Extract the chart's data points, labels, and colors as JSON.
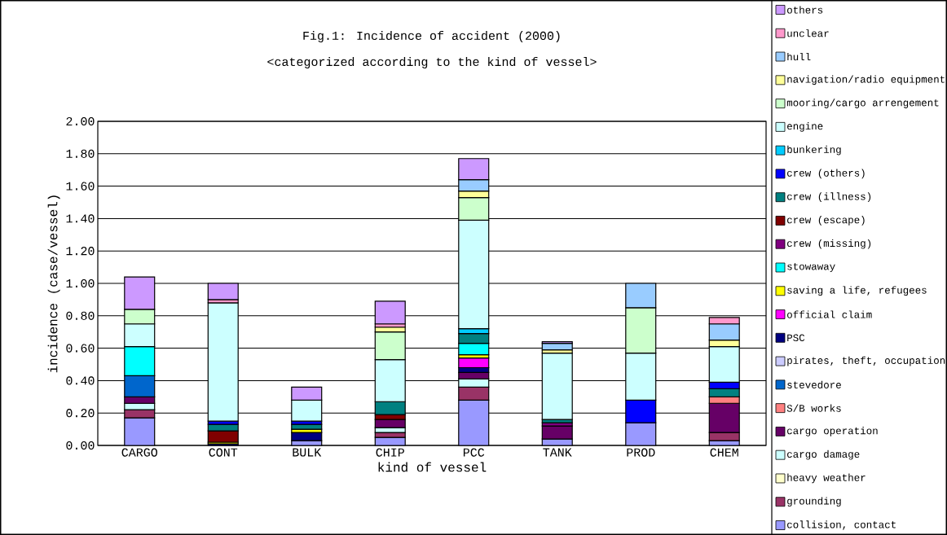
{
  "chart_data": {
    "type": "bar",
    "stacked": true,
    "title": "Fig.1: Incidence of accident  (2000)",
    "subtitle": "<categorized according to the kind of vessel>",
    "xlabel": "kind of vessel",
    "ylabel": "incidence (case/vessel)",
    "categories": [
      "CARGO",
      "CONT",
      "BULK",
      "CHIP",
      "PCC",
      "TANK",
      "PROD",
      "CHEM"
    ],
    "ylim": [
      0,
      2
    ],
    "yticks": [
      {
        "value": 0,
        "label": "0.00"
      },
      {
        "value": 0.2,
        "label": "0.20"
      },
      {
        "value": 0.4,
        "label": "0.40"
      },
      {
        "value": 0.6,
        "label": "0.60"
      },
      {
        "value": 0.8,
        "label": "0.80"
      },
      {
        "value": 1.0,
        "label": "1.00"
      },
      {
        "value": 1.2,
        "label": "1.20"
      },
      {
        "value": 1.4,
        "label": "1.40"
      },
      {
        "value": 1.6,
        "label": "1.60"
      },
      {
        "value": 1.8,
        "label": "1.80"
      },
      {
        "value": 2.0,
        "label": "2.00"
      }
    ],
    "grid": "y",
    "legend": "right",
    "series": [
      {
        "name": "collision, contact",
        "color": "#9999ff",
        "values": [
          0.17,
          null,
          0.03,
          0.05,
          0.28,
          0.04,
          0.14,
          0.03
        ]
      },
      {
        "name": "grounding",
        "color": "#993366",
        "values": [
          0.05,
          null,
          null,
          0.03,
          0.08,
          null,
          null,
          0.05
        ]
      },
      {
        "name": "heavy weather",
        "color": "#ffffcc",
        "values": [
          null,
          null,
          null,
          null,
          null,
          null,
          null,
          null
        ]
      },
      {
        "name": "cargo damage",
        "color": "#ccffff",
        "values": [
          0.04,
          null,
          null,
          0.03,
          0.05,
          null,
          null,
          null
        ]
      },
      {
        "name": "cargo operation",
        "color": "#660066",
        "values": [
          0.04,
          null,
          null,
          0.05,
          0.04,
          0.08,
          null,
          0.18
        ]
      },
      {
        "name": "S/B works",
        "color": "#ff8080",
        "values": [
          null,
          null,
          null,
          null,
          null,
          null,
          null,
          0.04
        ]
      },
      {
        "name": "stevedore",
        "color": "#0066cc",
        "values": [
          0.13,
          null,
          null,
          null,
          null,
          null,
          null,
          null
        ]
      },
      {
        "name": "pirates, theft, occupation",
        "color": "#ccccff",
        "values": [
          null,
          null,
          null,
          null,
          null,
          null,
          null,
          null
        ]
      },
      {
        "name": "PSC",
        "color": "#000080",
        "values": [
          null,
          0.01,
          0.05,
          null,
          0.03,
          null,
          null,
          null
        ]
      },
      {
        "name": "official claim",
        "color": "#ff00ff",
        "values": [
          null,
          null,
          null,
          null,
          0.06,
          null,
          null,
          null
        ]
      },
      {
        "name": "saving a life, refugees",
        "color": "#ffff00",
        "values": [
          null,
          0.01,
          0.02,
          null,
          0.02,
          null,
          null,
          null
        ]
      },
      {
        "name": "stowaway",
        "color": "#00ffff",
        "values": [
          0.18,
          null,
          null,
          null,
          0.07,
          null,
          null,
          null
        ]
      },
      {
        "name": "crew (missing)",
        "color": "#800080",
        "values": [
          null,
          null,
          null,
          null,
          null,
          0.02,
          null,
          null
        ]
      },
      {
        "name": "crew (escape)",
        "color": "#800000",
        "values": [
          null,
          0.07,
          null,
          0.03,
          null,
          null,
          null,
          null
        ]
      },
      {
        "name": "crew (illness)",
        "color": "#008080",
        "values": [
          null,
          0.04,
          0.03,
          0.08,
          0.06,
          0.02,
          null,
          0.05
        ]
      },
      {
        "name": "crew (others)",
        "color": "#0000ff",
        "values": [
          null,
          0.02,
          0.02,
          null,
          null,
          null,
          0.14,
          0.04
        ]
      },
      {
        "name": "bunkering",
        "color": "#00ccff",
        "values": [
          null,
          null,
          null,
          null,
          0.03,
          null,
          null,
          null
        ]
      },
      {
        "name": "engine",
        "color": "#ccffff",
        "values": [
          0.14,
          0.73,
          0.13,
          0.26,
          0.67,
          0.41,
          0.29,
          0.22
        ]
      },
      {
        "name": "mooring/cargo arrengement",
        "color": "#ccffcc",
        "values": [
          0.09,
          null,
          null,
          0.17,
          0.14,
          null,
          0.28,
          null
        ]
      },
      {
        "name": "navigation/radio equipment",
        "color": "#ffff99",
        "values": [
          null,
          null,
          null,
          0.03,
          0.04,
          0.02,
          null,
          0.04
        ]
      },
      {
        "name": "hull",
        "color": "#99ccff",
        "values": [
          null,
          null,
          null,
          null,
          0.07,
          0.04,
          0.15,
          0.1
        ]
      },
      {
        "name": "unclear",
        "color": "#ff99cc",
        "values": [
          null,
          0.02,
          null,
          0.02,
          null,
          null,
          null,
          0.04
        ]
      },
      {
        "name": "others",
        "color": "#cc99ff",
        "values": [
          0.2,
          0.1,
          0.08,
          0.14,
          0.13,
          0.01,
          null,
          null
        ]
      }
    ]
  }
}
